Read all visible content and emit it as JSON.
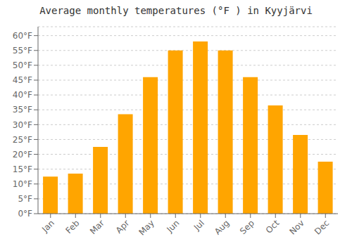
{
  "chart_data": {
    "type": "bar",
    "title": "Average monthly temperatures (°F ) in Kyyjärvi",
    "categories": [
      "Jan",
      "Feb",
      "Mar",
      "Apr",
      "May",
      "Jun",
      "Jul",
      "Aug",
      "Sep",
      "Oct",
      "Nov",
      "Dec"
    ],
    "values": [
      12.5,
      13.5,
      22.5,
      33.5,
      46.0,
      55.0,
      58.0,
      55.0,
      46.0,
      36.5,
      26.5,
      17.5
    ],
    "color": "#FFA500",
    "ylim": [
      0,
      63
    ],
    "yticks": [
      {
        "value": 0,
        "label": "0°F"
      },
      {
        "value": 5,
        "label": "5°F"
      },
      {
        "value": 10,
        "label": "10°F"
      },
      {
        "value": 15,
        "label": "15°F"
      },
      {
        "value": 20,
        "label": "20°F"
      },
      {
        "value": 25,
        "label": "25°F"
      },
      {
        "value": 30,
        "label": "30°F"
      },
      {
        "value": 35,
        "label": "35°F"
      },
      {
        "value": 40,
        "label": "40°F"
      },
      {
        "value": 45,
        "label": "45°F"
      },
      {
        "value": 50,
        "label": "50°F"
      },
      {
        "value": 55,
        "label": "55°F"
      },
      {
        "value": 60,
        "label": "60°F"
      }
    ],
    "grid": true
  }
}
